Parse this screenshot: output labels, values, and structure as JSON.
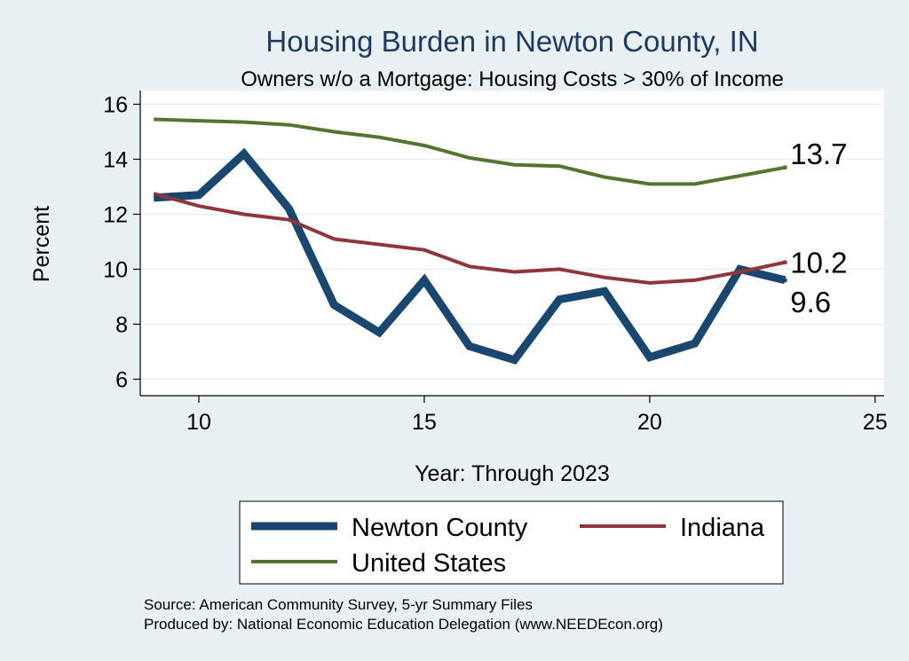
{
  "chart_data": {
    "type": "line",
    "title": "Housing Burden in Newton County, IN",
    "subtitle": "Owners w/o a Mortgage: Housing Costs > 30% of Income",
    "xlabel": "Year: Through 2023",
    "ylabel": "Percent",
    "xlim": [
      8.7,
      25.2
    ],
    "ylim": [
      5.4,
      16.5
    ],
    "xticks": [
      10,
      15,
      20,
      25
    ],
    "yticks": [
      6,
      8,
      10,
      12,
      14,
      16
    ],
    "grid": true,
    "x": [
      9,
      10,
      11,
      12,
      13,
      14,
      15,
      16,
      17,
      18,
      19,
      20,
      21,
      22,
      23
    ],
    "series": [
      {
        "name": "Newton County",
        "color": "#1a476f",
        "width": 9,
        "values": [
          12.6,
          12.7,
          14.2,
          12.2,
          8.7,
          7.7,
          9.6,
          7.2,
          6.7,
          8.9,
          9.2,
          6.8,
          7.3,
          10.0,
          9.6
        ],
        "end_label": "9.6"
      },
      {
        "name": "Indiana",
        "color": "#90353b",
        "width": 4,
        "values": [
          12.75,
          12.3,
          12.0,
          11.8,
          11.1,
          10.9,
          10.7,
          10.1,
          9.9,
          10.0,
          9.7,
          9.5,
          9.6,
          9.9,
          10.25
        ],
        "end_label": "10.2"
      },
      {
        "name": "United States",
        "color": "#55752f",
        "width": 4,
        "values": [
          15.45,
          15.4,
          15.35,
          15.25,
          15.0,
          14.8,
          14.5,
          14.05,
          13.8,
          13.75,
          13.35,
          13.1,
          13.1,
          13.4,
          13.7
        ],
        "end_label": "13.7"
      }
    ],
    "legend_position": "bottom",
    "source_lines": [
      "Source: American Community Survey, 5-yr Summary Files",
      "Produced by: National Economic Education Delegation (www.NEEDEcon.org)"
    ]
  }
}
